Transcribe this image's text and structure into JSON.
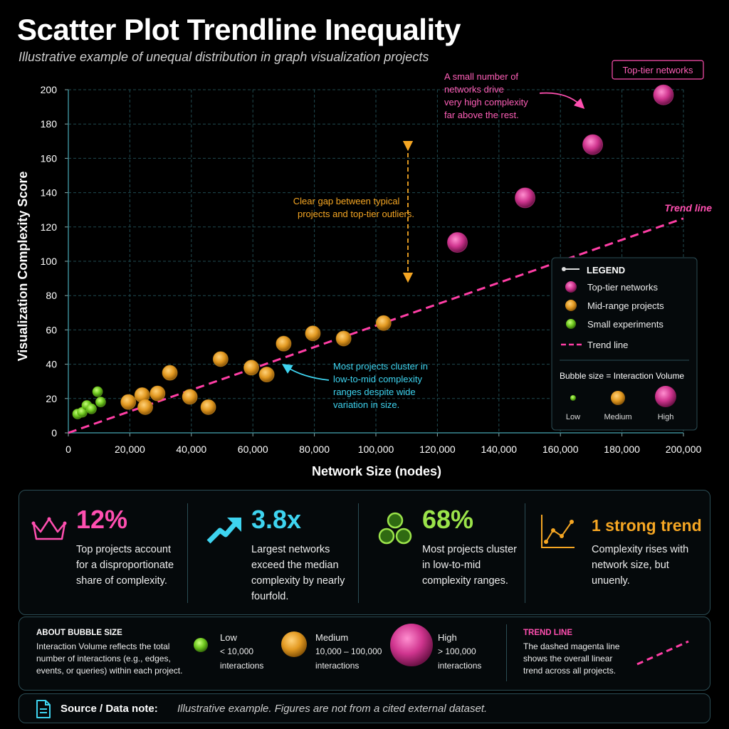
{
  "header": {
    "title": "Scatter Plot Trendline Inequality",
    "subtitle": "Illustrative example of unequal distribution in graph visualization projects"
  },
  "chart_data": {
    "type": "scatter",
    "xlabel": "Network Size (nodes)",
    "ylabel": "Visualization Complexity Score",
    "xlim": [
      0,
      200000
    ],
    "ylim": [
      0,
      200
    ],
    "xticks": [
      "0",
      "20,000",
      "40,000",
      "60,000",
      "80,000",
      "100,000",
      "120,000",
      "140,000",
      "160,000",
      "180,000",
      "200,000"
    ],
    "yticks": [
      "0",
      "20",
      "40",
      "60",
      "80",
      "100",
      "120",
      "140",
      "160",
      "180",
      "200"
    ],
    "grid": true,
    "series": [
      {
        "name": "Small experiments",
        "color": "#7ed321",
        "points": [
          [
            3000,
            11
          ],
          [
            4500,
            12
          ],
          [
            6000,
            16
          ],
          [
            7500,
            14
          ],
          [
            9500,
            24
          ],
          [
            10500,
            18
          ]
        ]
      },
      {
        "name": "Mid-range projects",
        "color": "#f5a623",
        "points": [
          [
            19500,
            18
          ],
          [
            24000,
            22
          ],
          [
            25000,
            15
          ],
          [
            29000,
            23
          ],
          [
            33000,
            35
          ],
          [
            39500,
            21
          ],
          [
            45500,
            15
          ],
          [
            49500,
            43
          ],
          [
            59500,
            38
          ],
          [
            64500,
            34
          ],
          [
            70000,
            52
          ],
          [
            79500,
            58
          ],
          [
            89500,
            55
          ],
          [
            102500,
            64
          ]
        ]
      },
      {
        "name": "Top-tier networks",
        "color": "#e63ea0",
        "points": [
          [
            126500,
            111
          ],
          [
            148500,
            137
          ],
          [
            170500,
            168
          ],
          [
            193500,
            197
          ]
        ]
      }
    ],
    "trend": {
      "name": "Trend line",
      "from": [
        0,
        0
      ],
      "to": [
        200000,
        125
      ],
      "color": "#ff3ea5"
    },
    "legend": {
      "title": "LEGEND",
      "items": [
        "Top-tier networks",
        "Mid-range projects",
        "Small experiments",
        "Trend line"
      ],
      "size_title": "Bubble size = Interaction Volume",
      "size_labels": [
        "Low",
        "Medium",
        "High"
      ],
      "position": "lower-right"
    },
    "annotations": [
      {
        "name": "top-tier-badge",
        "text": "Top-tier networks"
      },
      {
        "name": "top-tier-note",
        "lines": [
          "A small number of",
          "networks drive",
          "very high complexity",
          "far above the rest."
        ]
      },
      {
        "name": "gap-note",
        "lines": [
          "Clear gap between typical",
          "projects and top-tier outliers."
        ]
      },
      {
        "name": "cluster-note",
        "lines": [
          "Most projects cluster in",
          "low-to-mid complexity",
          "ranges despite wide",
          "variation in size."
        ]
      },
      {
        "name": "trend-label",
        "text": "Trend line"
      }
    ]
  },
  "stats": [
    {
      "value": "12%",
      "color": "#ff4fb0",
      "icon": "crown-icon",
      "text": "Top projects account for a disproportionate share of complexity."
    },
    {
      "value": "3.8x",
      "color": "#3ed4f0",
      "icon": "trend-up-arrow-icon",
      "text": "Largest networks exceed the median complexity by nearly fourfold."
    },
    {
      "value": "68%",
      "color": "#9be34a",
      "icon": "cluster-circles-icon",
      "text": "Most projects cluster in low-to-mid complexity ranges."
    },
    {
      "value": "1 strong trend",
      "color": "#f5a623",
      "icon": "line-chart-icon",
      "text": "Complexity rises with network size, but unuenly."
    }
  ],
  "bubble_info": {
    "heading": "ABOUT BUBBLE SIZE",
    "text": "Interaction Volume reflects the total number of interactions (e.g., edges, events, or queries) within each project.",
    "sizes": [
      {
        "label": "Low",
        "range": "< 10,000",
        "unit": "interactions"
      },
      {
        "label": "Medium",
        "range": "10,000 – 100,000",
        "unit": "interactions"
      },
      {
        "label": "High",
        "range": "> 100,000",
        "unit": "interactions"
      }
    ],
    "trend_heading": "TREND LINE",
    "trend_text": "The dashed magenta line shows the overall linear trend across all projects."
  },
  "source": {
    "label": "Source / Data note:",
    "note": "Illustrative example. Figures are not from a cited external dataset."
  }
}
